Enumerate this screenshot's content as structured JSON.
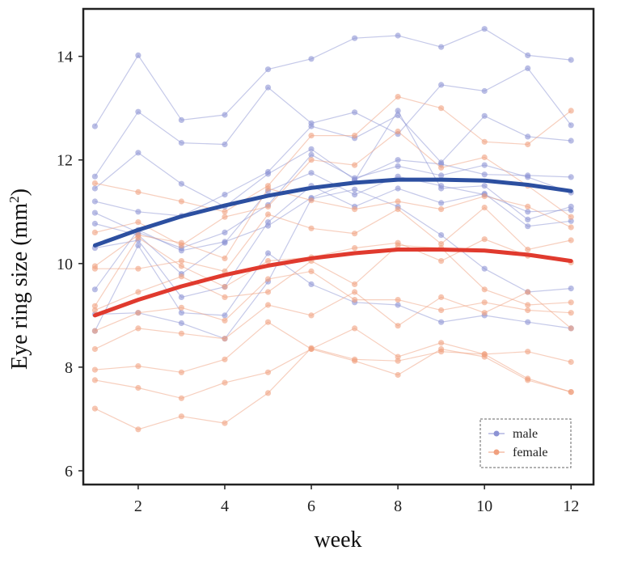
{
  "chart_data": {
    "type": "line",
    "xlabel": "week",
    "ylabel_main": "Eye ring size (mm",
    "ylabel_sup": "2",
    "ylabel_close": ")",
    "xlim": [
      0.75,
      12.5
    ],
    "ylim": [
      5.75,
      14.9
    ],
    "xticks": [
      2,
      4,
      6,
      8,
      10,
      12
    ],
    "yticks": [
      6,
      8,
      10,
      12,
      14
    ],
    "grid": false,
    "legend_position": "bottom-right",
    "legend": [
      {
        "label": "male",
        "color": "#8c93d4"
      },
      {
        "label": "female",
        "color": "#f0a07e"
      }
    ],
    "weeks": [
      1,
      2,
      3,
      4,
      5,
      6,
      7,
      8,
      9,
      10,
      11,
      12
    ],
    "individuals": [
      {
        "group": "male",
        "values": [
          12.65,
          14.02,
          12.77,
          12.87,
          13.75,
          13.95,
          14.35,
          14.4,
          14.18,
          14.53,
          14.02,
          13.93
        ]
      },
      {
        "group": "male",
        "values": [
          11.68,
          12.93,
          12.33,
          12.3,
          13.4,
          12.71,
          12.92,
          12.5,
          13.45,
          13.33,
          13.77,
          12.67
        ]
      },
      {
        "group": "male",
        "values": [
          11.45,
          12.14,
          11.54,
          11.1,
          11.73,
          12.21,
          11.62,
          12.0,
          11.92,
          11.72,
          11.7,
          11.67
        ]
      },
      {
        "group": "male",
        "values": [
          11.2,
          11.0,
          10.92,
          11.33,
          11.77,
          12.65,
          12.42,
          12.86,
          11.95,
          12.85,
          12.45,
          12.37
        ]
      },
      {
        "group": "male",
        "values": [
          10.98,
          10.6,
          10.3,
          10.6,
          11.13,
          12.1,
          11.65,
          11.88,
          11.7,
          11.9,
          11.67,
          11.37
        ]
      },
      {
        "group": "male",
        "values": [
          10.77,
          10.55,
          9.8,
          10.4,
          11.4,
          11.75,
          11.33,
          11.68,
          11.5,
          11.33,
          11.0,
          11.03
        ]
      },
      {
        "group": "male",
        "values": [
          10.3,
          10.45,
          9.35,
          9.55,
          10.8,
          11.5,
          11.1,
          11.45,
          11.17,
          11.35,
          10.72,
          10.82
        ]
      },
      {
        "group": "male",
        "values": [
          9.5,
          10.65,
          10.25,
          10.42,
          10.73,
          11.27,
          11.6,
          12.95,
          11.45,
          11.5,
          10.85,
          11.1
        ]
      },
      {
        "group": "male",
        "values": [
          9.02,
          9.05,
          8.85,
          8.55,
          9.65,
          11.25,
          11.43,
          11.1,
          10.55,
          9.9,
          9.45,
          9.52
        ]
      },
      {
        "group": "male",
        "values": [
          8.7,
          10.35,
          9.05,
          9.0,
          10.2,
          9.6,
          9.25,
          9.2,
          8.87,
          9.0,
          8.87,
          8.75
        ]
      },
      {
        "group": "female",
        "values": [
          11.55,
          11.38,
          11.2,
          11.0,
          11.5,
          12.47,
          12.47,
          13.22,
          13.0,
          12.35,
          12.3,
          12.95
        ]
      },
      {
        "group": "female",
        "values": [
          10.6,
          10.8,
          10.35,
          10.9,
          11.1,
          12.0,
          11.9,
          12.55,
          11.85,
          12.05,
          11.5,
          10.9
        ]
      },
      {
        "group": "female",
        "values": [
          9.95,
          10.55,
          10.4,
          10.1,
          11.45,
          11.22,
          11.05,
          11.2,
          11.05,
          11.3,
          11.1,
          10.7
        ]
      },
      {
        "group": "female",
        "values": [
          9.9,
          9.9,
          10.05,
          9.85,
          10.95,
          10.68,
          10.58,
          11.05,
          10.38,
          11.08,
          10.27,
          10.45
        ]
      },
      {
        "group": "female",
        "values": [
          9.18,
          10.5,
          9.95,
          9.55,
          10.05,
          10.12,
          10.3,
          10.4,
          10.05,
          10.47,
          10.15,
          10.02
        ]
      },
      {
        "group": "female",
        "values": [
          9.1,
          9.45,
          9.75,
          9.35,
          9.45,
          10.05,
          9.6,
          10.35,
          10.3,
          9.5,
          9.2,
          9.25
        ]
      },
      {
        "group": "female",
        "values": [
          8.7,
          9.05,
          9.15,
          8.9,
          9.7,
          9.85,
          9.3,
          9.3,
          9.1,
          9.25,
          9.1,
          9.05
        ]
      },
      {
        "group": "female",
        "values": [
          8.35,
          8.75,
          8.65,
          8.55,
          9.2,
          9.0,
          9.45,
          8.8,
          9.35,
          9.05,
          9.45,
          8.75
        ]
      },
      {
        "group": "female",
        "values": [
          7.95,
          8.02,
          7.9,
          8.15,
          8.87,
          8.35,
          8.75,
          8.2,
          8.47,
          8.25,
          8.3,
          8.1
        ]
      },
      {
        "group": "female",
        "values": [
          7.75,
          7.6,
          7.4,
          7.7,
          7.9,
          8.35,
          8.12,
          7.85,
          8.35,
          8.2,
          7.75,
          7.52
        ]
      },
      {
        "group": "female",
        "values": [
          7.2,
          6.8,
          7.05,
          6.92,
          7.5,
          8.37,
          8.15,
          8.12,
          8.3,
          8.25,
          7.78,
          7.52
        ]
      }
    ],
    "fits": [
      {
        "group": "male",
        "color": "#2c4fa0",
        "values": [
          10.35,
          10.65,
          10.91,
          11.12,
          11.31,
          11.46,
          11.56,
          11.62,
          11.62,
          11.6,
          11.52,
          11.4
        ]
      },
      {
        "group": "female",
        "color": "#e03a2e",
        "values": [
          9.0,
          9.3,
          9.56,
          9.78,
          9.96,
          10.1,
          10.2,
          10.27,
          10.27,
          10.25,
          10.17,
          10.05
        ]
      }
    ]
  }
}
